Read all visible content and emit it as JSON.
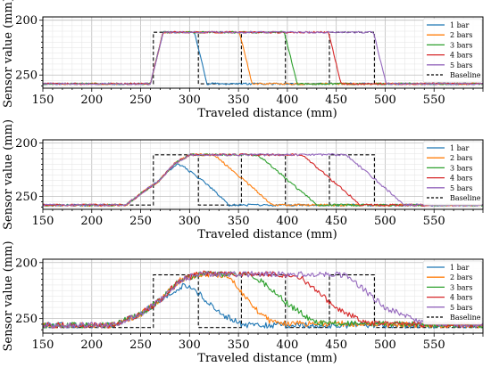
{
  "chart_data": [
    {
      "type": "line",
      "panel": "top",
      "xlabel": "Traveled distance (mm)",
      "ylabel": "Sensor value (mm)",
      "xlim": [
        150,
        600
      ],
      "ylim": [
        262,
        197
      ],
      "y_inverted": true,
      "xticks": [
        150,
        200,
        250,
        300,
        350,
        400,
        450,
        500,
        550
      ],
      "yticks": [
        200,
        250
      ],
      "grid": "on (major and minor)",
      "legend_placement": "right",
      "noise": 0.8,
      "series": [
        {
          "name": "1 bar",
          "color": "#1f77b4",
          "x": [
            150,
            260,
            273,
            290,
            305,
            318,
            600
          ],
          "y": [
            258,
            258,
            211,
            211,
            211,
            258,
            258
          ]
        },
        {
          "name": "2 bars",
          "color": "#ff7f0e",
          "x": [
            150,
            260,
            273,
            340,
            351,
            364,
            600
          ],
          "y": [
            258,
            258,
            211,
            211,
            211,
            258,
            258
          ]
        },
        {
          "name": "3 bars",
          "color": "#2ca02c",
          "x": [
            150,
            260,
            273,
            385,
            397,
            410,
            600
          ],
          "y": [
            258,
            258,
            211,
            211,
            211,
            258,
            258
          ]
        },
        {
          "name": "4 bars",
          "color": "#d62728",
          "x": [
            150,
            260,
            273,
            430,
            442,
            455,
            600
          ],
          "y": [
            258,
            258,
            211,
            211,
            211,
            258,
            258
          ]
        },
        {
          "name": "5 bars",
          "color": "#9467bd",
          "x": [
            150,
            260,
            273,
            475,
            488,
            501,
            600
          ],
          "y": [
            258,
            258,
            211,
            211,
            211,
            258,
            258
          ]
        },
        {
          "name": "Baseline",
          "color": "#000000",
          "dashed": true,
          "x": [
            150,
            263,
            263,
            309,
            309,
            353,
            353,
            398,
            398,
            443,
            443,
            489,
            489,
            600
          ],
          "y": [
            258,
            258,
            211,
            211,
            258,
            258,
            211,
            211,
            258,
            258,
            211,
            211,
            258,
            258
          ]
        }
      ]
    },
    {
      "type": "line",
      "panel": "middle",
      "xlabel": "Traveled distance (mm)",
      "ylabel": "Sensor value (mm)",
      "xlim": [
        150,
        600
      ],
      "ylim": [
        262,
        197
      ],
      "y_inverted": true,
      "xticks": [
        150,
        200,
        250,
        300,
        350,
        400,
        450,
        500,
        550
      ],
      "yticks": [
        200,
        250
      ],
      "grid": "on (major and minor)",
      "legend_placement": "right",
      "noise": 1.0,
      "series": [
        {
          "name": "1 bar",
          "color": "#1f77b4",
          "x": [
            150,
            235,
            255,
            268,
            278,
            288,
            295,
            320,
            340,
            600
          ],
          "y": [
            258,
            258,
            244,
            236,
            226,
            220,
            223,
            240,
            258,
            258
          ]
        },
        {
          "name": "2 bars",
          "color": "#ff7f0e",
          "x": [
            150,
            235,
            255,
            268,
            285,
            300,
            325,
            375,
            385,
            600
          ],
          "y": [
            258,
            258,
            244,
            236,
            219,
            211,
            211,
            250,
            258,
            258
          ]
        },
        {
          "name": "3 bars",
          "color": "#2ca02c",
          "x": [
            150,
            235,
            255,
            268,
            285,
            300,
            370,
            420,
            430,
            600
          ],
          "y": [
            258,
            258,
            244,
            236,
            219,
            211,
            211,
            250,
            258,
            258
          ]
        },
        {
          "name": "4 bars",
          "color": "#d62728",
          "x": [
            150,
            235,
            255,
            268,
            285,
            300,
            415,
            465,
            475,
            600
          ],
          "y": [
            258,
            258,
            244,
            236,
            219,
            211,
            211,
            250,
            258,
            258
          ]
        },
        {
          "name": "5 bars",
          "color": "#9467bd",
          "x": [
            150,
            235,
            255,
            268,
            285,
            300,
            460,
            510,
            520,
            600
          ],
          "y": [
            258,
            258,
            244,
            236,
            219,
            211,
            211,
            250,
            258,
            258
          ]
        },
        {
          "name": "Baseline",
          "color": "#000000",
          "dashed": true,
          "x": [
            150,
            263,
            263,
            309,
            309,
            353,
            353,
            398,
            398,
            443,
            443,
            489,
            489,
            600
          ],
          "y": [
            258,
            258,
            211,
            211,
            258,
            258,
            211,
            211,
            258,
            258,
            211,
            211,
            258,
            258
          ]
        }
      ]
    },
    {
      "type": "line",
      "panel": "bottom",
      "xlabel": "Traveled distance (mm)",
      "ylabel": "Sensor value (mm)",
      "xlim": [
        150,
        600
      ],
      "ylim": [
        263,
        197
      ],
      "y_inverted": true,
      "xticks": [
        150,
        200,
        250,
        300,
        350,
        400,
        450,
        500,
        550
      ],
      "yticks": [
        200,
        250
      ],
      "grid": "on (major and minor)",
      "legend_placement": "right",
      "noise": 2.6,
      "series": [
        {
          "name": "1 bar",
          "color": "#1f77b4",
          "x": [
            150,
            220,
            250,
            272,
            290,
            300,
            315,
            335,
            355,
            600
          ],
          "y": [
            256,
            256,
            246,
            232,
            222,
            220,
            232,
            247,
            256,
            256
          ]
        },
        {
          "name": "2 bars",
          "color": "#ff7f0e",
          "x": [
            150,
            220,
            250,
            272,
            290,
            310,
            340,
            365,
            385,
            600
          ],
          "y": [
            256,
            256,
            246,
            232,
            216,
            210,
            212,
            240,
            254,
            256
          ]
        },
        {
          "name": "3 bars",
          "color": "#2ca02c",
          "x": [
            150,
            220,
            250,
            272,
            290,
            310,
            365,
            405,
            430,
            600
          ],
          "y": [
            256,
            256,
            246,
            232,
            216,
            210,
            211,
            240,
            254,
            256
          ]
        },
        {
          "name": "4 bars",
          "color": "#d62728",
          "x": [
            150,
            220,
            250,
            272,
            290,
            310,
            410,
            450,
            480,
            600
          ],
          "y": [
            256,
            256,
            246,
            232,
            216,
            210,
            211,
            240,
            254,
            256
          ]
        },
        {
          "name": "5 bars",
          "color": "#9467bd",
          "x": [
            150,
            220,
            250,
            272,
            290,
            310,
            460,
            500,
            540,
            600
          ],
          "y": [
            256,
            256,
            246,
            232,
            216,
            210,
            211,
            240,
            254,
            256
          ]
        },
        {
          "name": "Baseline",
          "color": "#000000",
          "dashed": true,
          "x": [
            150,
            263,
            263,
            309,
            309,
            353,
            353,
            398,
            398,
            443,
            443,
            489,
            489,
            600
          ],
          "y": [
            258,
            258,
            211,
            211,
            258,
            258,
            211,
            211,
            258,
            258,
            211,
            211,
            258,
            258
          ]
        }
      ]
    }
  ]
}
